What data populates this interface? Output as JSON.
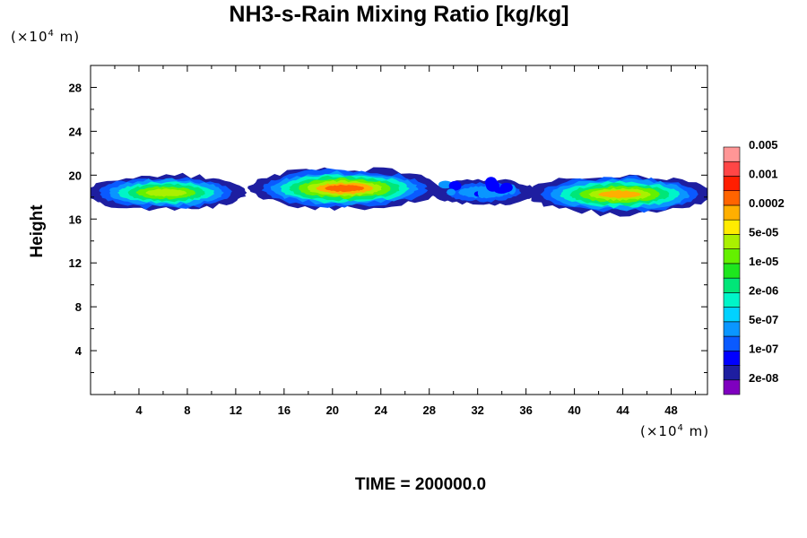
{
  "chart_data": {
    "type": "heatmap",
    "title": "NH3-s-Rain Mixing Ratio [kg/kg]",
    "ylabel": "Height",
    "xlabel": "",
    "x_unit_label": {
      "prefix": "(×10",
      "exp": "4",
      "suffix": " m)"
    },
    "y_unit_label": {
      "prefix": "(×10",
      "exp": "4",
      "suffix": " m)"
    },
    "footer": "TIME = 200000.0",
    "xlim": [
      0,
      51
    ],
    "ylim": [
      0,
      30
    ],
    "x_ticks": [
      4,
      8,
      12,
      16,
      20,
      24,
      28,
      32,
      36,
      40,
      44,
      48
    ],
    "y_ticks": [
      4,
      8,
      12,
      16,
      20,
      24,
      28
    ],
    "colorbar": {
      "colors": [
        "#7f00bf",
        "#1e1ea0",
        "#0000ff",
        "#0a5aff",
        "#0a96ff",
        "#00d2ff",
        "#00f5c8",
        "#00e678",
        "#1ee61e",
        "#64f000",
        "#aaf000",
        "#ffeb00",
        "#ffaf00",
        "#ff6400",
        "#ff1e00",
        "#ff4646",
        "#ff9696"
      ],
      "labels": [
        "2e-08",
        "1e-07",
        "5e-07",
        "2e-06",
        "1e-05",
        "5e-05",
        "0.0002",
        "0.001",
        "0.005"
      ]
    },
    "field": {
      "description_levels": [
        "edge",
        "outer",
        "mid",
        "core",
        "peak"
      ],
      "band_bottom_km_e4": 16.5,
      "band_top_km_e4": 20.5,
      "blobs": [
        {
          "x": [
            0,
            12.5
          ],
          "y": [
            16.8,
            20.0
          ],
          "peak": 3.2
        },
        {
          "x": [
            13.5,
            28.5
          ],
          "y": [
            17.0,
            20.6
          ],
          "peak": 4.0
        },
        {
          "x": [
            28.5,
            36.5
          ],
          "y": [
            17.3,
            19.6
          ],
          "peak": 1.2
        },
        {
          "x": [
            36.5,
            51
          ],
          "y": [
            16.5,
            20.0
          ],
          "peak": 3.3
        }
      ]
    }
  }
}
